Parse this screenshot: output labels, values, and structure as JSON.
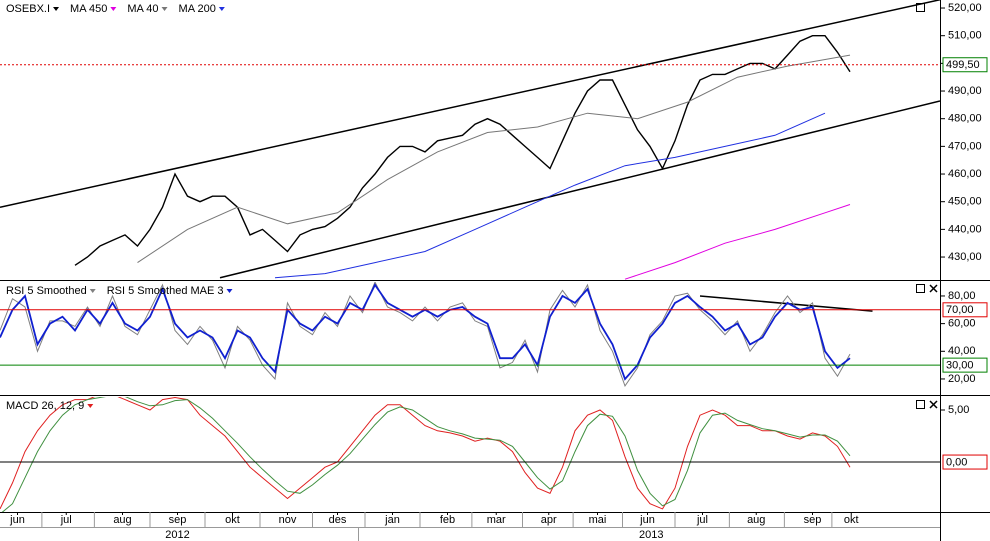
{
  "chart_data": [
    {
      "type": "line",
      "xlim": [
        0,
        75.2
      ],
      "ylim": [
        421.7,
        522.9
      ],
      "x": [
        0,
        1,
        2,
        3,
        4,
        5,
        6,
        7,
        8,
        9,
        10,
        11,
        12,
        13,
        14,
        15,
        16,
        17,
        18,
        19,
        20,
        21,
        22,
        23,
        24,
        25,
        26,
        27,
        28,
        29,
        30,
        31,
        32,
        33,
        34,
        35,
        36,
        37,
        38,
        39,
        40,
        41,
        42,
        43,
        44,
        45,
        46,
        47,
        48,
        49,
        50,
        51,
        52,
        53,
        54,
        55,
        56,
        57,
        58,
        59,
        60,
        61,
        62,
        63,
        64,
        65,
        66,
        67,
        68
      ],
      "series": [
        {
          "name": "OSEBX.I",
          "color": "#000000",
          "width": 1.4,
          "values": [
            null,
            null,
            null,
            null,
            null,
            null,
            427,
            430,
            434,
            436,
            438,
            434,
            440,
            448,
            460,
            452,
            450,
            452,
            452,
            448,
            438,
            440,
            436,
            432,
            438,
            440,
            441,
            444,
            448,
            455,
            460,
            466,
            470,
            470,
            468,
            472,
            473,
            474,
            478,
            480,
            478,
            474,
            470,
            466,
            462,
            472,
            482,
            490,
            494,
            494,
            485,
            476,
            470,
            462,
            472,
            485,
            494,
            496,
            496,
            498,
            500,
            500,
            498,
            503,
            508,
            510,
            510,
            504,
            497
          ]
        },
        {
          "name": "MA 450",
          "color": "#e000e0",
          "width": 1,
          "x": [
            50,
            54,
            58,
            62,
            66,
            68
          ],
          "values": [
            422,
            428,
            435,
            440,
            446,
            449
          ]
        },
        {
          "name": "MA 40",
          "color": "#777777",
          "width": 1,
          "x": [
            11,
            15,
            19,
            23,
            27,
            31,
            35,
            39,
            43,
            47,
            51,
            55,
            59,
            63,
            68
          ],
          "values": [
            428,
            440,
            448,
            442,
            446,
            458,
            468,
            475,
            477,
            482,
            480,
            486,
            495,
            499,
            503
          ]
        },
        {
          "name": "MA 200",
          "color": "#2030e0",
          "width": 1,
          "x": [
            22,
            26,
            30,
            34,
            38,
            42,
            46,
            50,
            54,
            58,
            62,
            66
          ],
          "values": [
            422.5,
            424,
            428,
            432,
            440,
            448,
            456,
            463,
            466,
            470,
            474,
            482
          ]
        }
      ],
      "yticks": [
        {
          "value": 430,
          "label": "430,00"
        },
        {
          "value": 440,
          "label": "440,00"
        },
        {
          "value": 450,
          "label": "450,00"
        },
        {
          "value": 460,
          "label": "460,00"
        },
        {
          "value": 470,
          "label": "470,00"
        },
        {
          "value": 480,
          "label": "480,00"
        },
        {
          "value": 490,
          "label": "490,00"
        },
        {
          "value": 500,
          "label": "500,00"
        },
        {
          "value": 510,
          "label": "510,00"
        },
        {
          "value": 520,
          "label": "520,00"
        }
      ],
      "levels": [
        {
          "value": 499.5,
          "label": "499,50",
          "color": "#e00000",
          "label_color": "#008000",
          "dashed": true
        }
      ],
      "trendlines": [
        {
          "x": [
            0,
            75.2
          ],
          "y": [
            448,
            523
          ]
        },
        {
          "x": [
            17.6,
            75.2
          ],
          "y": [
            422.5,
            486.4
          ]
        }
      ]
    },
    {
      "type": "line",
      "xlim": [
        0,
        75.2
      ],
      "ylim": [
        8.4,
        90.1
      ],
      "x": [
        0,
        1,
        2,
        3,
        4,
        5,
        6,
        7,
        8,
        9,
        10,
        11,
        12,
        13,
        14,
        15,
        16,
        17,
        18,
        19,
        20,
        21,
        22,
        23,
        24,
        25,
        26,
        27,
        28,
        29,
        30,
        31,
        32,
        33,
        34,
        35,
        36,
        37,
        38,
        39,
        40,
        41,
        42,
        43,
        44,
        45,
        46,
        47,
        48,
        49,
        50,
        51,
        52,
        53,
        54,
        55,
        56,
        57,
        58,
        59,
        60,
        61,
        62,
        63,
        64,
        65,
        66,
        67,
        68
      ],
      "series": [
        {
          "name": "RSI 5 Smoothed",
          "color": "#808080",
          "width": 1,
          "values": [
            55,
            78,
            72,
            40,
            62,
            62,
            58,
            72,
            58,
            80,
            58,
            52,
            70,
            88,
            55,
            45,
            58,
            48,
            28,
            58,
            48,
            30,
            20,
            75,
            58,
            52,
            68,
            58,
            80,
            68,
            90,
            72,
            68,
            62,
            72,
            62,
            72,
            75,
            62,
            58,
            28,
            32,
            48,
            25,
            70,
            84,
            72,
            88,
            55,
            40,
            15,
            28,
            52,
            62,
            80,
            82,
            70,
            62,
            52,
            62,
            40,
            52,
            68,
            80,
            68,
            75,
            35,
            22,
            38
          ]
        },
        {
          "name": "RSI 5 Smoothed MAE 3",
          "color": "#1020d0",
          "width": 1.8,
          "values": [
            50,
            70,
            80,
            45,
            60,
            65,
            55,
            70,
            60,
            75,
            60,
            55,
            65,
            85,
            60,
            50,
            55,
            50,
            35,
            55,
            50,
            35,
            25,
            70,
            60,
            55,
            65,
            60,
            75,
            70,
            88,
            75,
            70,
            65,
            70,
            65,
            70,
            72,
            65,
            60,
            35,
            35,
            45,
            30,
            65,
            80,
            75,
            85,
            60,
            45,
            20,
            30,
            50,
            60,
            75,
            80,
            72,
            65,
            55,
            60,
            45,
            50,
            65,
            75,
            70,
            72,
            40,
            28,
            35
          ]
        }
      ],
      "yticks": [
        {
          "value": 20,
          "label": "20,00"
        },
        {
          "value": 40,
          "label": "40,00"
        },
        {
          "value": 60,
          "label": "60,00"
        },
        {
          "value": 80,
          "label": "80,00"
        }
      ],
      "levels": [
        {
          "value": 70,
          "label": "70,00",
          "color": "#e00000",
          "label_color": "#e00000",
          "dashed": false
        },
        {
          "value": 30,
          "label": "30,00",
          "color": "#008000",
          "label_color": "#008000",
          "dashed": false
        }
      ],
      "trendlines": [
        {
          "x": [
            56,
            69.8
          ],
          "y": [
            80,
            69
          ]
        }
      ]
    },
    {
      "type": "line",
      "xlim": [
        0,
        75.2
      ],
      "ylim": [
        -4.8,
        6.25
      ],
      "x": [
        0,
        1,
        2,
        3,
        4,
        5,
        6,
        7,
        8,
        9,
        10,
        11,
        12,
        13,
        14,
        15,
        16,
        17,
        18,
        19,
        20,
        21,
        22,
        23,
        24,
        25,
        26,
        27,
        28,
        29,
        30,
        31,
        32,
        33,
        34,
        35,
        36,
        37,
        38,
        39,
        40,
        41,
        42,
        43,
        44,
        45,
        46,
        47,
        48,
        49,
        50,
        51,
        52,
        53,
        54,
        55,
        56,
        57,
        58,
        59,
        60,
        61,
        62,
        63,
        64,
        65,
        66,
        67,
        68
      ],
      "series": [
        {
          "name": "MACD 26, 12, 9",
          "color": "#e02020",
          "width": 1,
          "values": [
            -4.5,
            -2,
            1,
            3,
            4.5,
            5.5,
            6,
            6,
            6.5,
            6.5,
            6,
            5.5,
            5,
            6,
            6.2,
            6,
            4.5,
            3.5,
            2.5,
            1,
            -0.5,
            -1.5,
            -2.5,
            -3.5,
            -2.5,
            -1.5,
            -0.5,
            0,
            1.5,
            3,
            4.5,
            5.5,
            5.5,
            4.5,
            3.5,
            3,
            2.8,
            2.5,
            2,
            2.3,
            2,
            1,
            -1,
            -2.5,
            -3,
            -0.5,
            3,
            4.5,
            5,
            4,
            0.5,
            -2.5,
            -4,
            -4.5,
            -2.5,
            1.5,
            4.5,
            5,
            4.5,
            3.5,
            3.5,
            3,
            3,
            2.5,
            2.2,
            2.8,
            2.5,
            1.5,
            -0.5
          ]
        },
        {
          "color": "#409040",
          "width": 1,
          "values": [
            -5,
            -4,
            -1.5,
            1,
            3,
            4.5,
            5.5,
            6,
            6.2,
            6.4,
            6.3,
            5.8,
            5.4,
            5.5,
            5.9,
            6,
            5.2,
            4.2,
            3,
            1.8,
            0.5,
            -0.7,
            -1.8,
            -2.8,
            -3,
            -2.2,
            -1.2,
            -0.3,
            0.8,
            2.2,
            3.6,
            4.8,
            5.3,
            5,
            4.2,
            3.4,
            3,
            2.7,
            2.3,
            2.2,
            2.1,
            1.5,
            0,
            -1.5,
            -2.6,
            -1.8,
            1,
            3.5,
            4.6,
            4.4,
            2.5,
            -0.8,
            -3,
            -4.2,
            -3.6,
            -0.8,
            2.8,
            4.5,
            4.7,
            4,
            3.6,
            3.2,
            3,
            2.7,
            2.4,
            2.6,
            2.6,
            2,
            0.6
          ]
        }
      ],
      "yticks": [
        {
          "value": 5,
          "label": "5,00"
        }
      ],
      "levels": [
        {
          "value": 0,
          "label": "0,00",
          "color": "#000000",
          "label_color": "#e00000",
          "dashed": false
        }
      ],
      "trendlines": [],
      "xticks": [
        {
          "value": 1.4,
          "label": "jun"
        },
        {
          "value": 5.3,
          "label": "jul"
        },
        {
          "value": 9.8,
          "label": "aug"
        },
        {
          "value": 14.2,
          "label": "sep"
        },
        {
          "value": 18.6,
          "label": "okt"
        },
        {
          "value": 23,
          "label": "nov"
        },
        {
          "value": 27,
          "label": "des"
        },
        {
          "value": 31.4,
          "label": "jan"
        },
        {
          "value": 35.8,
          "label": "feb"
        },
        {
          "value": 39.7,
          "label": "mar"
        },
        {
          "value": 43.9,
          "label": "apr"
        },
        {
          "value": 47.8,
          "label": "mai"
        },
        {
          "value": 51.8,
          "label": "jun"
        },
        {
          "value": 56.2,
          "label": "jul"
        },
        {
          "value": 60.5,
          "label": "aug"
        },
        {
          "value": 65,
          "label": "sep"
        },
        {
          "value": 68.1,
          "label": "okt"
        }
      ],
      "year_ticks": [
        {
          "value": 14.2,
          "label": "2012"
        },
        {
          "value": 52.1,
          "label": "2013"
        }
      ]
    }
  ]
}
